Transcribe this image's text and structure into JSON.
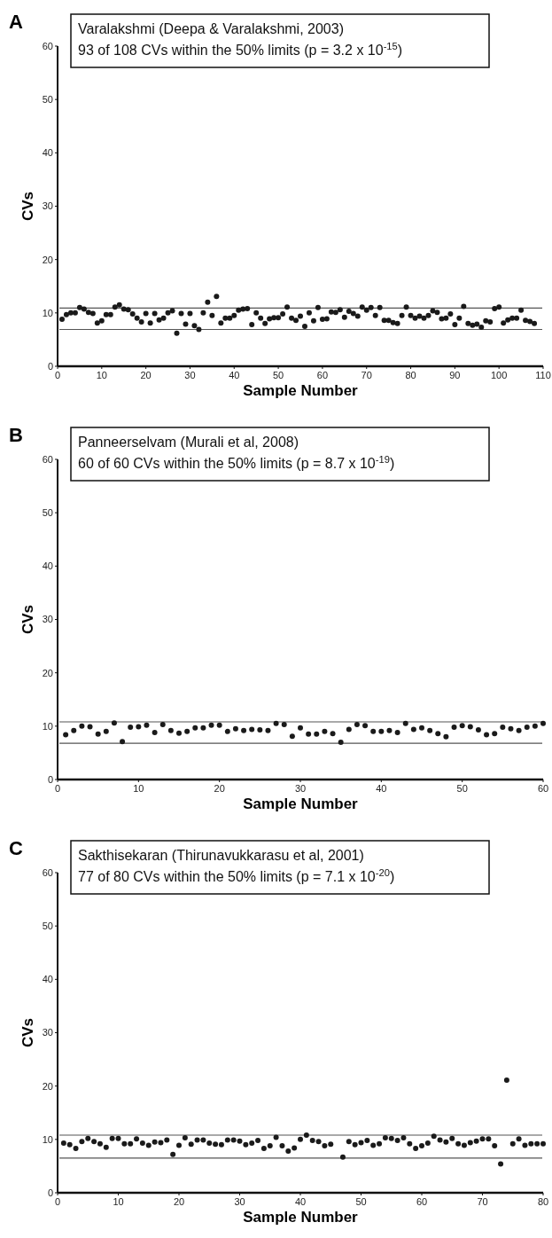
{
  "chart_data": [
    {
      "type": "scatter",
      "title": "A",
      "xlabel": "Sample Number",
      "ylabel": "CVs",
      "annotations": [
        "Varalakshmi (Deepa & Varalakshmi, 2003)",
        "93 of 108 CVs within the 50% limits (p = 3.2 x 10$^{-15}$)"
      ],
      "xlim": [
        0,
        110
      ],
      "xticks": [
        0,
        10,
        20,
        30,
        40,
        50,
        60,
        70,
        80,
        90,
        100,
        110
      ],
      "ylim": [
        0,
        60
      ],
      "yticks": [
        0,
        10,
        20,
        30,
        40,
        50,
        60
      ],
      "marker": "circle",
      "grid": false,
      "ref_lines": [
        {
          "axis": "y",
          "value": 10.9,
          "color": "#555555"
        },
        {
          "axis": "y",
          "value": 6.9,
          "color": "#555555"
        }
      ],
      "series": [
        {
          "color": "#1a1a1a",
          "x": [
            1,
            2,
            3,
            4,
            5,
            6,
            7,
            8,
            9,
            10,
            11,
            12,
            13,
            14,
            15,
            16,
            17,
            18,
            19,
            20,
            21,
            22,
            23,
            24,
            25,
            26,
            27,
            28,
            29,
            30,
            31,
            32,
            33,
            34,
            35,
            36,
            37,
            38,
            39,
            40,
            41,
            42,
            43,
            44,
            45,
            46,
            47,
            48,
            49,
            50,
            51,
            52,
            53,
            54,
            55,
            56,
            57,
            58,
            59,
            60,
            61,
            62,
            63,
            64,
            65,
            66,
            67,
            68,
            69,
            70,
            71,
            72,
            73,
            74,
            75,
            76,
            77,
            78,
            79,
            80,
            81,
            82,
            83,
            84,
            85,
            86,
            87,
            88,
            89,
            90,
            91,
            92,
            93,
            94,
            95,
            96,
            97,
            98,
            99,
            100,
            101,
            102,
            103,
            104,
            105,
            106,
            107,
            108
          ],
          "values": [
            8.8,
            9.7,
            10,
            10,
            11,
            10.7,
            10.1,
            9.9,
            8.1,
            8.5,
            9.7,
            9.7,
            11.1,
            11.5,
            10.7,
            10.6,
            9.8,
            9,
            8.3,
            9.9,
            8.1,
            9.9,
            8.7,
            9,
            10,
            10.4,
            6.2,
            9.9,
            7.9,
            9.9,
            7.6,
            6.9,
            10,
            12,
            9.5,
            13.1,
            8.1,
            9,
            9,
            9.5,
            10.5,
            10.7,
            10.8,
            7.8,
            10,
            9,
            8,
            8.9,
            9.1,
            9.1,
            9.8,
            11.1,
            9,
            8.6,
            9.4,
            7.5,
            10,
            8.5,
            11,
            8.8,
            8.9,
            10.2,
            10.1,
            10.6,
            9.2,
            10.3,
            9.9,
            9.4,
            11.1,
            10.5,
            11,
            9.5,
            11,
            8.6,
            8.6,
            8.2,
            8,
            9.5,
            11.1,
            9.5,
            9,
            9.4,
            9,
            9.5,
            10.4,
            10.1,
            8.9,
            9,
            9.8,
            7.8,
            9,
            11.2,
            8,
            7.7,
            7.9,
            7.3,
            8.5,
            8.3,
            10.8,
            11.1,
            8.1,
            8.7,
            9,
            9,
            10.5,
            8.6,
            8.4,
            8
          ]
        }
      ]
    },
    {
      "type": "scatter",
      "title": "B",
      "xlabel": "Sample Number",
      "ylabel": "CVs",
      "annotations": [
        "Panneerselvam (Murali et al, 2008)",
        "60 of 60 CVs within the 50% limits (p = 8.7 x 10$^{-19}$)"
      ],
      "xlim": [
        0,
        60
      ],
      "xticks": [
        0,
        10,
        20,
        30,
        40,
        50,
        60
      ],
      "ylim": [
        0,
        60
      ],
      "yticks": [
        0,
        10,
        20,
        30,
        40,
        50,
        60
      ],
      "marker": "circle",
      "grid": false,
      "ref_lines": [
        {
          "axis": "y",
          "value": 10.8,
          "color": "#555555"
        },
        {
          "axis": "y",
          "value": 6.8,
          "color": "#555555"
        }
      ],
      "series": [
        {
          "color": "#1a1a1a",
          "x": [
            1,
            2,
            3,
            4,
            5,
            6,
            7,
            8,
            9,
            10,
            11,
            12,
            13,
            14,
            15,
            16,
            17,
            18,
            19,
            20,
            21,
            22,
            23,
            24,
            25,
            26,
            27,
            28,
            29,
            30,
            31,
            32,
            33,
            34,
            35,
            36,
            37,
            38,
            39,
            40,
            41,
            42,
            43,
            44,
            45,
            46,
            47,
            48,
            49,
            50,
            51,
            52,
            53,
            54,
            55,
            56,
            57,
            58,
            59,
            60
          ],
          "values": [
            8.4,
            9.2,
            10,
            9.9,
            8.5,
            9,
            10.6,
            7.1,
            9.8,
            9.9,
            10.2,
            8.8,
            10.3,
            9.2,
            8.7,
            9,
            9.7,
            9.7,
            10.2,
            10.2,
            9,
            9.5,
            9.2,
            9.4,
            9.3,
            9.2,
            10.5,
            10.3,
            8.1,
            9.7,
            8.5,
            8.5,
            9,
            8.6,
            7,
            9.4,
            10.3,
            10.1,
            9,
            9,
            9.2,
            8.8,
            10.5,
            9.4,
            9.7,
            9.2,
            8.6,
            8,
            9.8,
            10.1,
            9.9,
            9.3,
            8.4,
            8.6,
            9.8,
            9.5,
            9.2,
            9.8,
            10,
            10.5
          ]
        }
      ]
    },
    {
      "type": "scatter",
      "title": "C",
      "xlabel": "Sample Number",
      "ylabel": "CVs",
      "annotations": [
        "Sakthisekaran (Thirunavukkarasu et al, 2001)",
        "77 of 80 CVs within the 50% limits (p = 7.1 x 10$^{-20}$)"
      ],
      "xlim": [
        0,
        80
      ],
      "xticks": [
        0,
        10,
        20,
        30,
        40,
        50,
        60,
        70,
        80
      ],
      "ylim": [
        0,
        60
      ],
      "yticks": [
        0,
        10,
        20,
        30,
        40,
        50,
        60
      ],
      "marker": "circle",
      "grid": false,
      "ref_lines": [
        {
          "axis": "y",
          "value": 10.8,
          "color": "#555555"
        },
        {
          "axis": "y",
          "value": 6.5,
          "color": "#555555"
        }
      ],
      "series": [
        {
          "color": "#1a1a1a",
          "x": [
            1,
            2,
            3,
            4,
            5,
            6,
            7,
            8,
            9,
            10,
            11,
            12,
            13,
            14,
            15,
            16,
            17,
            18,
            19,
            20,
            21,
            22,
            23,
            24,
            25,
            26,
            27,
            28,
            29,
            30,
            31,
            32,
            33,
            34,
            35,
            36,
            37,
            38,
            39,
            40,
            41,
            42,
            43,
            44,
            45,
            47,
            48,
            49,
            50,
            51,
            52,
            53,
            54,
            55,
            56,
            57,
            58,
            59,
            60,
            61,
            62,
            63,
            64,
            65,
            66,
            67,
            68,
            69,
            70,
            71,
            72,
            73,
            74,
            75,
            76,
            77,
            78,
            79,
            80
          ],
          "values": [
            9.3,
            9,
            8.3,
            9.6,
            10.2,
            9.6,
            9.2,
            8.5,
            10.2,
            10.2,
            9.2,
            9.2,
            10.1,
            9.3,
            8.9,
            9.5,
            9.4,
            9.9,
            7.2,
            8.9,
            10.3,
            9.1,
            9.9,
            9.9,
            9.3,
            9.1,
            9,
            9.9,
            9.9,
            9.7,
            9,
            9.3,
            9.8,
            8.3,
            8.8,
            10.4,
            8.8,
            7.8,
            8.4,
            10,
            10.8,
            9.8,
            9.6,
            8.8,
            9.1,
            6.7,
            9.6,
            9,
            9.4,
            9.8,
            8.9,
            9.2,
            10.3,
            10.2,
            9.8,
            10.3,
            9.2,
            8.3,
            8.8,
            9.3,
            10.6,
            9.9,
            9.5,
            10.2,
            9.2,
            8.9,
            9.4,
            9.7,
            10.1,
            10.1,
            8.8,
            5.4,
            21.1,
            9.2,
            10.1,
            8.9,
            9.2,
            9.2,
            9.2
          ]
        }
      ]
    }
  ]
}
